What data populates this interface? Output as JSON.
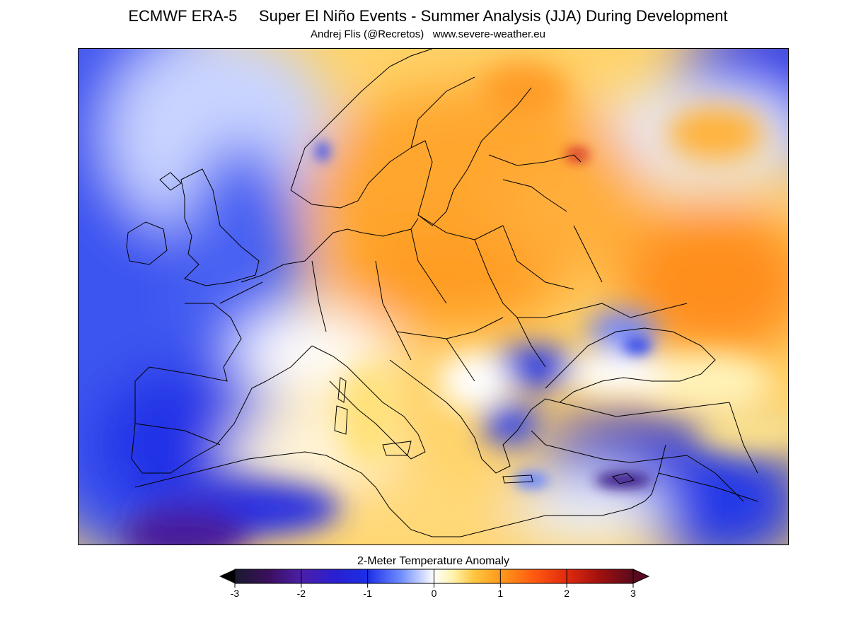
{
  "header": {
    "title": "ECMWF ERA-5     Super El Niño Events - Summer Analysis (JJA) During Development",
    "subtitle": "Andrej Flis (@Recretos)   www.severe-weather.eu"
  },
  "colorbar": {
    "label": "2-Meter Temperature Anomaly",
    "ticks": [
      "-3",
      "-2",
      "-1",
      "0",
      "1",
      "2",
      "3"
    ],
    "range": [
      -3,
      3
    ],
    "extend": "both",
    "stops": [
      {
        "value": -3.0,
        "color": "#1a1a2e"
      },
      {
        "value": -2.5,
        "color": "#3a0f5c"
      },
      {
        "value": -2.0,
        "color": "#4b1fa8"
      },
      {
        "value": -1.5,
        "color": "#2a1fd0"
      },
      {
        "value": -1.0,
        "color": "#1c2fe6"
      },
      {
        "value": -0.5,
        "color": "#6f8cff"
      },
      {
        "value": 0.0,
        "color": "#ffffff"
      },
      {
        "value": 0.3,
        "color": "#fff1a8"
      },
      {
        "value": 0.6,
        "color": "#ffc640"
      },
      {
        "value": 1.0,
        "color": "#ff9a1a"
      },
      {
        "value": 1.5,
        "color": "#ff5a10"
      },
      {
        "value": 2.0,
        "color": "#e02a0e"
      },
      {
        "value": 2.5,
        "color": "#a0100e"
      },
      {
        "value": 3.0,
        "color": "#5a0a1e"
      }
    ]
  },
  "map": {
    "region": "Europe",
    "colors": {
      "cold_strong": "#1c2fe6",
      "cold_weak": "#8aa6ff",
      "neutral": "#ffffff",
      "warm_weak": "#ffe58a",
      "warm": "#ffb43a",
      "warm_strong": "#ff8c1a",
      "hot_spot": "#c8101e"
    }
  }
}
